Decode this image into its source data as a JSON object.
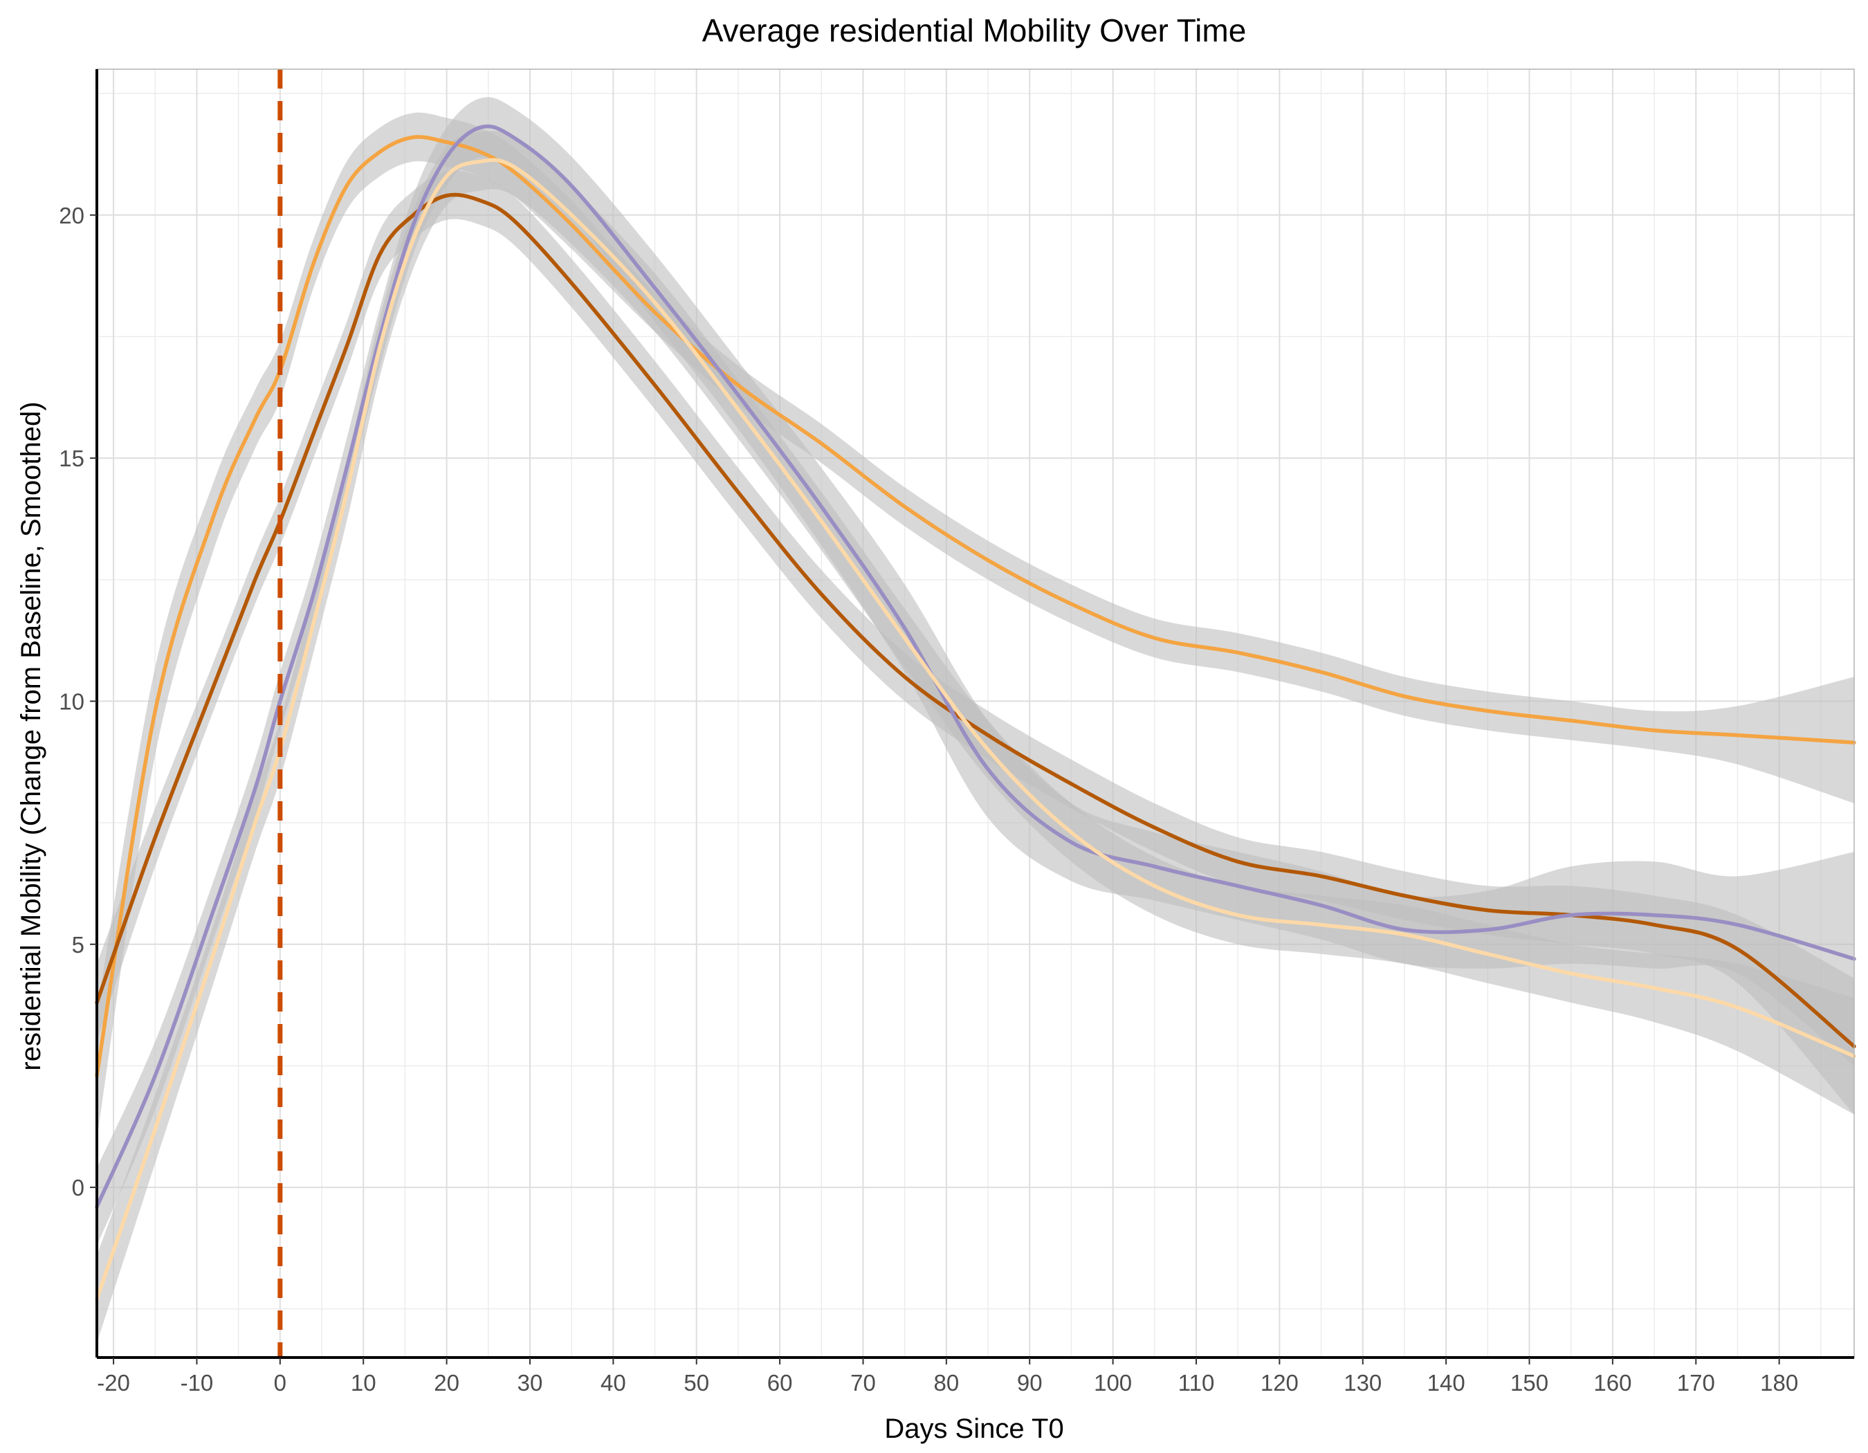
{
  "chart_data": {
    "type": "line",
    "title": "Average residential Mobility Over Time",
    "xlabel": "Days Since T0",
    "ylabel": "residential Mobility (Change from Baseline, Smoothed)",
    "xlim": [
      -22,
      189
    ],
    "ylim": [
      -3.5,
      23.0
    ],
    "x_ticks": [
      -20,
      -10,
      0,
      10,
      20,
      30,
      40,
      50,
      60,
      70,
      80,
      90,
      100,
      110,
      120,
      130,
      140,
      150,
      160,
      170,
      180
    ],
    "y_ticks": [
      0,
      5,
      10,
      15,
      20
    ],
    "grid": true,
    "legend": "none",
    "reference_line": {
      "x": 0,
      "style": "dashed",
      "color": "#cc4c02"
    },
    "band_color": "#bebebe",
    "series": [
      {
        "color": "#f4a442",
        "x": [
          -22,
          -15,
          -8,
          -3,
          0,
          4,
          8,
          12,
          16,
          20,
          24,
          28,
          35,
          45,
          55,
          65,
          75,
          85,
          95,
          105,
          115,
          125,
          135,
          145,
          155,
          165,
          175,
          189
        ],
        "y": [
          2.3,
          9.8,
          13.8,
          15.8,
          16.8,
          19.0,
          20.6,
          21.3,
          21.6,
          21.5,
          21.3,
          20.9,
          19.8,
          18.0,
          16.5,
          15.3,
          14.0,
          12.9,
          12.0,
          11.3,
          11.0,
          10.6,
          10.1,
          9.8,
          9.6,
          9.4,
          9.3,
          9.15
        ],
        "lower": [
          1.0,
          8.9,
          13.1,
          15.2,
          16.2,
          18.5,
          20.1,
          20.8,
          21.1,
          21.0,
          20.8,
          20.4,
          19.3,
          17.6,
          16.1,
          14.9,
          13.6,
          12.5,
          11.6,
          10.9,
          10.6,
          10.2,
          9.7,
          9.4,
          9.2,
          9.0,
          8.7,
          7.9
        ],
        "upper": [
          3.6,
          10.7,
          14.5,
          16.4,
          17.4,
          19.5,
          21.1,
          21.8,
          22.1,
          22.0,
          21.8,
          21.4,
          20.3,
          18.4,
          16.9,
          15.7,
          14.4,
          13.3,
          12.4,
          11.7,
          11.4,
          11.0,
          10.5,
          10.2,
          10.0,
          9.8,
          9.9,
          10.5
        ]
      },
      {
        "color": "#b35806",
        "x": [
          -22,
          -15,
          -8,
          -3,
          0,
          4,
          8,
          12,
          16,
          20,
          24,
          28,
          35,
          45,
          55,
          65,
          75,
          85,
          95,
          105,
          115,
          125,
          135,
          145,
          155,
          165,
          175,
          189
        ],
        "y": [
          3.8,
          7.2,
          10.3,
          12.5,
          13.7,
          15.5,
          17.3,
          19.2,
          20.0,
          20.4,
          20.3,
          19.9,
          18.6,
          16.5,
          14.3,
          12.2,
          10.5,
          9.3,
          8.3,
          7.4,
          6.7,
          6.4,
          6.0,
          5.7,
          5.6,
          5.4,
          4.9,
          2.9
        ],
        "lower": [
          3.0,
          6.6,
          9.8,
          12.0,
          13.2,
          15.0,
          16.8,
          18.7,
          19.5,
          19.9,
          19.8,
          19.4,
          18.1,
          16.0,
          13.8,
          11.7,
          10.0,
          8.8,
          7.8,
          6.9,
          6.2,
          5.9,
          5.5,
          5.2,
          5.0,
          4.8,
          4.2,
          1.5
        ],
        "upper": [
          4.6,
          7.8,
          10.8,
          13.0,
          14.2,
          16.0,
          17.8,
          19.7,
          20.5,
          20.9,
          20.8,
          20.4,
          19.1,
          17.0,
          14.8,
          12.7,
          11.0,
          9.8,
          8.8,
          7.9,
          7.2,
          6.9,
          6.5,
          6.2,
          6.2,
          6.0,
          5.6,
          4.3
        ]
      },
      {
        "color": "#998ec3",
        "x": [
          -22,
          -15,
          -8,
          -3,
          0,
          4,
          8,
          12,
          16,
          20,
          24,
          28,
          35,
          45,
          55,
          65,
          75,
          85,
          95,
          105,
          115,
          125,
          135,
          145,
          155,
          165,
          175,
          189
        ],
        "y": [
          -0.4,
          2.3,
          5.7,
          8.2,
          10.0,
          12.2,
          14.8,
          17.5,
          19.8,
          21.2,
          21.8,
          21.6,
          20.6,
          18.5,
          16.3,
          14.0,
          11.5,
          8.6,
          7.1,
          6.6,
          6.2,
          5.8,
          5.3,
          5.3,
          5.6,
          5.6,
          5.4,
          4.7
        ],
        "lower": [
          -1.2,
          1.6,
          5.1,
          7.6,
          9.4,
          11.6,
          14.2,
          16.9,
          19.2,
          20.6,
          21.2,
          21.0,
          20.0,
          17.8,
          15.6,
          13.2,
          10.6,
          7.6,
          6.3,
          5.9,
          5.5,
          5.1,
          4.6,
          4.5,
          4.6,
          4.5,
          4.4,
          2.5
        ],
        "upper": [
          0.4,
          3.0,
          6.3,
          8.8,
          10.6,
          12.8,
          15.4,
          18.1,
          20.4,
          21.8,
          22.4,
          22.2,
          21.2,
          19.2,
          17.0,
          14.8,
          12.4,
          9.6,
          7.9,
          7.3,
          6.9,
          6.5,
          6.0,
          6.1,
          6.6,
          6.7,
          6.4,
          6.9
        ]
      },
      {
        "color": "#fdd9a8",
        "x": [
          -22,
          -15,
          -8,
          -3,
          0,
          4,
          8,
          12,
          16,
          20,
          24,
          28,
          35,
          45,
          55,
          65,
          75,
          85,
          95,
          105,
          115,
          125,
          135,
          145,
          155,
          165,
          175,
          189
        ],
        "y": [
          -2.3,
          1.2,
          4.8,
          7.5,
          9.0,
          11.6,
          14.3,
          17.3,
          19.5,
          20.8,
          21.1,
          21.0,
          20.0,
          18.2,
          16.0,
          13.7,
          11.3,
          9.0,
          7.3,
          6.2,
          5.6,
          5.4,
          5.2,
          4.8,
          4.4,
          4.1,
          3.7,
          2.7
        ],
        "lower": [
          -3.2,
          0.5,
          4.2,
          6.9,
          8.4,
          11.0,
          13.7,
          16.7,
          18.9,
          20.2,
          20.5,
          20.4,
          19.4,
          17.6,
          15.4,
          13.1,
          10.7,
          8.4,
          6.7,
          5.6,
          5.0,
          4.8,
          4.6,
          4.2,
          3.8,
          3.4,
          2.8,
          1.5
        ],
        "upper": [
          -1.4,
          1.9,
          5.4,
          8.1,
          9.6,
          12.2,
          14.9,
          17.9,
          20.1,
          21.4,
          21.7,
          21.6,
          20.6,
          18.8,
          16.6,
          14.3,
          11.9,
          9.6,
          7.9,
          6.8,
          6.2,
          6.0,
          5.8,
          5.4,
          5.0,
          4.8,
          4.6,
          3.9
        ]
      }
    ]
  }
}
